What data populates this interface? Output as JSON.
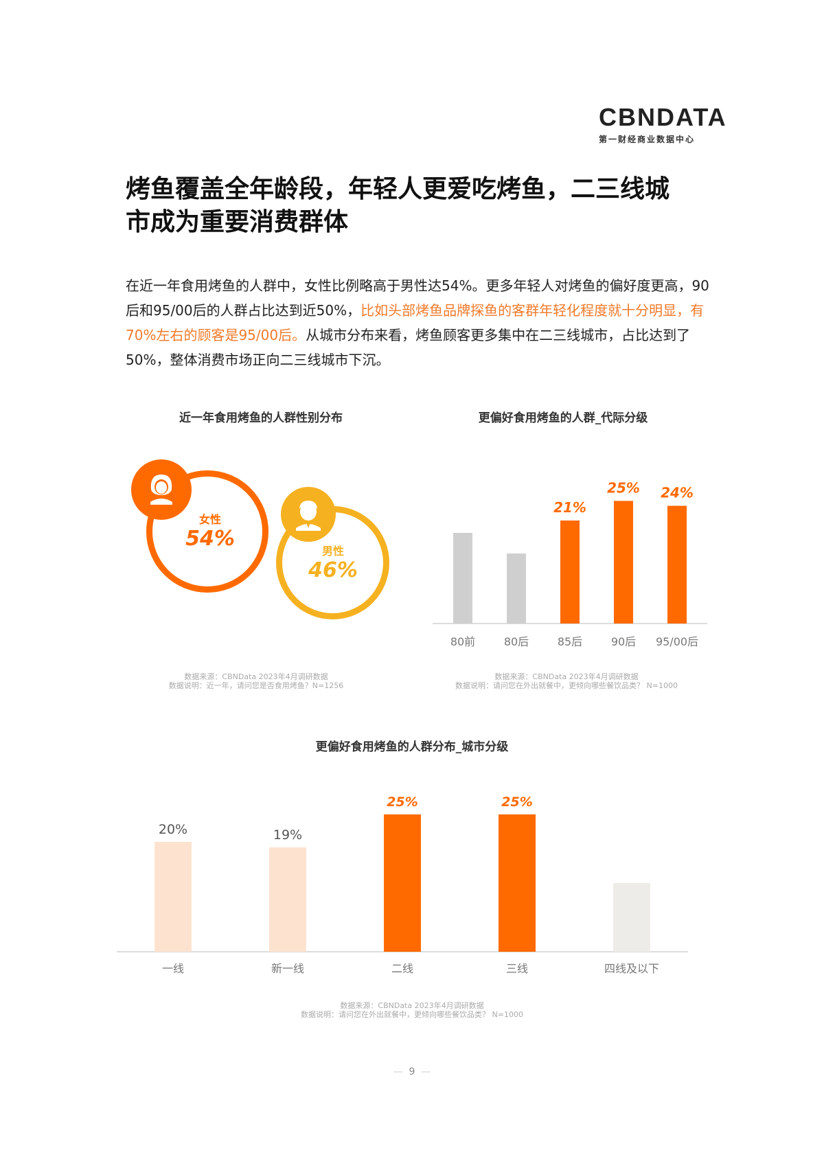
{
  "logo": {
    "brand": "CBNDATA",
    "subtitle": "第一财经商业数据中心"
  },
  "heading": {
    "line1": "烤鱼覆盖全年龄段，年轻人更爱吃烤鱼，二三线城",
    "line2": "市成为重要消费群体"
  },
  "paragraph": {
    "p1": "在近一年食用烤鱼的人群中，女性比例略高于男性达54%。更多年轻人对烤鱼的偏好度更高，",
    "p2": "90后和95/00后的人群占比达到近50%，",
    "p3_highlight": "比如头部烤鱼品牌探鱼的客群年轻化程度就十分明显，有70%左右的顾客是95/00后。",
    "p4": "从城市分布来看，烤鱼顾客更多集中在二三线城市，占比达到了50%，整体消费市场正向二三线城市下沉。"
  },
  "colors": {
    "orange": "#ff6a00",
    "yellow": "#f5b120",
    "gray": "#cfcfcf",
    "light_orange": "#fde3cf",
    "light_gray": "#eeece8"
  },
  "chart_data": [
    {
      "type": "pie",
      "title": "近一年食用烤鱼的人群性别分布",
      "categories": [
        "女性",
        "男性"
      ],
      "values": [
        54,
        46
      ],
      "labels": [
        "54%",
        "46%"
      ],
      "icons": [
        "female-avatar-icon",
        "male-avatar-icon"
      ],
      "note1": "数据来源：CBNData 2023年4月调研数据",
      "note2": "数据说明：近一年，请问您是否食用烤鱼？N=1256"
    },
    {
      "type": "bar",
      "title": "更偏好食用烤鱼的人群_代际分级",
      "categories": [
        "80前",
        "80后",
        "85后",
        "90后",
        "95/00后"
      ],
      "values": [
        null,
        null,
        21,
        25,
        24
      ],
      "labels": [
        "",
        "",
        "21%",
        "25%",
        "24%"
      ],
      "highlight": [
        false,
        false,
        true,
        true,
        true
      ],
      "note1": "数据来源：CBNData 2023年4月调研数据",
      "note2": "数据说明：请问您在外出就餐中，更倾向哪些餐饮品类？ N=1000"
    },
    {
      "type": "bar",
      "title": "更偏好食用烤鱼的人群分布_城市分级",
      "categories": [
        "一线",
        "新一线",
        "二线",
        "三线",
        "四线及以下"
      ],
      "values": [
        20,
        19,
        25,
        25,
        null
      ],
      "labels": [
        "20%",
        "19%",
        "25%",
        "25%",
        ""
      ],
      "highlight": [
        false,
        false,
        true,
        true,
        false
      ],
      "note1": "数据来源：CBNData 2023年4月调研数据",
      "note2": "数据说明：请问您在外出就餐中，更倾向哪些餐饮品类？ N=1000"
    }
  ],
  "page_number": "9"
}
